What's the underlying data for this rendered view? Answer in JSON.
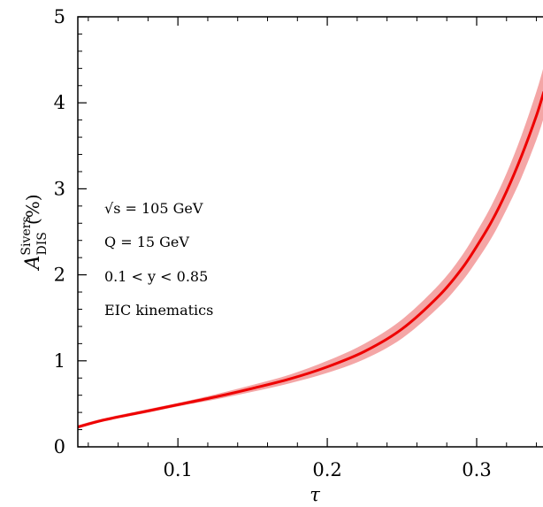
{
  "chart_data": {
    "type": "line",
    "xlabel": "τ",
    "ylabel": {
      "main": "A",
      "superscript": "Sivers",
      "subscript": "DIS",
      "unit": "(%)"
    },
    "xlim": [
      0.033,
      0.345
    ],
    "ylim": [
      0,
      5
    ],
    "x_ticks": [
      {
        "value": 0.1,
        "label": "0.1"
      },
      {
        "value": 0.2,
        "label": "0.2"
      },
      {
        "value": 0.3,
        "label": "0.3"
      }
    ],
    "y_ticks": [
      {
        "value": 0,
        "label": "0"
      },
      {
        "value": 1,
        "label": "1"
      },
      {
        "value": 2,
        "label": "2"
      },
      {
        "value": 3,
        "label": "3"
      },
      {
        "value": 4,
        "label": "4"
      },
      {
        "value": 5,
        "label": "5"
      }
    ],
    "annotations": [
      "√s = 105 GeV",
      "Q = 15 GeV",
      "0.1 < y < 0.85",
      "EIC kinematics"
    ],
    "series": [
      {
        "color": "#ee0000",
        "band_color": "#f4a6a6",
        "x": [
          0.033,
          0.05,
          0.075,
          0.1,
          0.125,
          0.15,
          0.175,
          0.2,
          0.225,
          0.25,
          0.275,
          0.29,
          0.3,
          0.31,
          0.32,
          0.33,
          0.34,
          0.345
        ],
        "y": [
          0.23,
          0.31,
          0.4,
          0.49,
          0.58,
          0.68,
          0.79,
          0.93,
          1.11,
          1.37,
          1.76,
          2.07,
          2.33,
          2.62,
          2.97,
          3.38,
          3.85,
          4.13
        ],
        "lower": [
          0.22,
          0.3,
          0.38,
          0.47,
          0.55,
          0.64,
          0.74,
          0.86,
          1.02,
          1.26,
          1.63,
          1.92,
          2.16,
          2.43,
          2.76,
          3.13,
          3.57,
          3.83
        ],
        "upper": [
          0.25,
          0.33,
          0.42,
          0.51,
          0.61,
          0.72,
          0.84,
          1.0,
          1.2,
          1.48,
          1.89,
          2.22,
          2.5,
          2.81,
          3.18,
          3.62,
          4.13,
          4.43
        ]
      }
    ]
  }
}
